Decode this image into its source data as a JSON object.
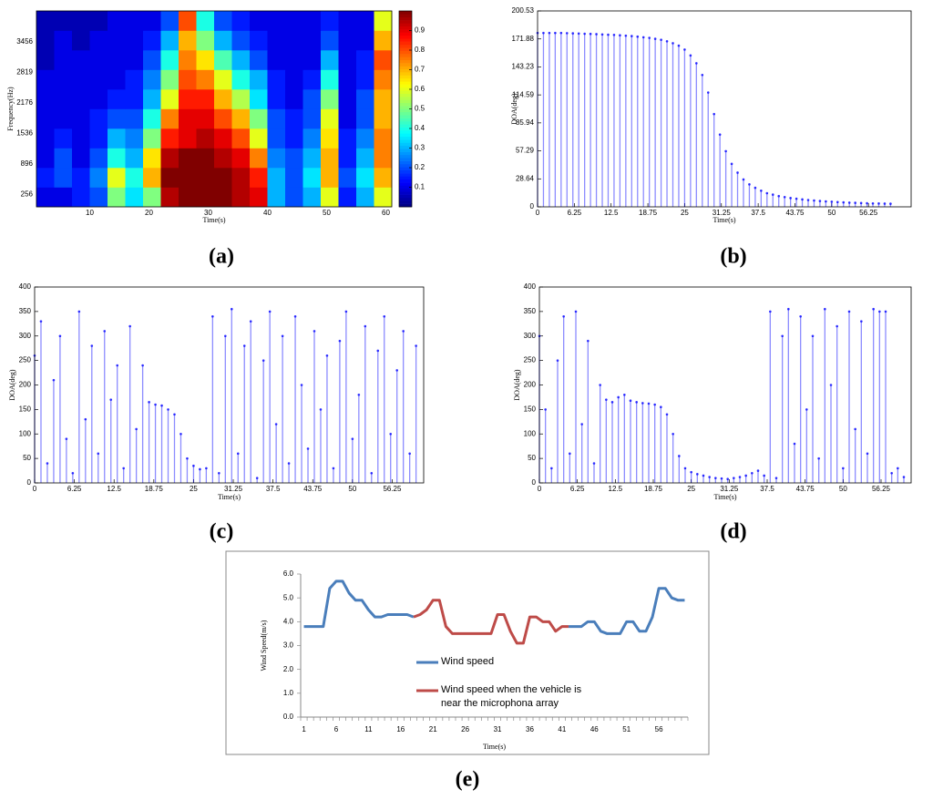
{
  "chart_data": [
    {
      "type": "heatmap",
      "panel_label": "(a)",
      "xlabel": "Time(s)",
      "ylabel": "Frequency(Hz)",
      "x_bins": [
        1,
        4,
        7,
        10,
        13,
        16,
        19,
        22,
        25,
        28,
        31,
        34,
        37,
        40,
        43,
        46,
        49,
        52,
        55,
        58,
        61
      ],
      "y_bins": [
        0,
        410,
        820,
        1230,
        1640,
        2050,
        2460,
        2870,
        3280,
        3690,
        4100
      ],
      "z": [
        [
          0.1,
          0.1,
          0.15,
          0.2,
          0.5,
          0.35,
          0.5,
          0.95,
          1,
          1,
          1,
          0.95,
          0.9,
          0.3,
          0.2,
          0.3,
          0.6,
          0.15,
          0.3,
          0.6
        ],
        [
          0.15,
          0.2,
          0.15,
          0.25,
          0.6,
          0.4,
          0.7,
          1,
          1,
          1,
          1,
          0.95,
          0.85,
          0.3,
          0.2,
          0.35,
          0.7,
          0.2,
          0.35,
          0.7
        ],
        [
          0.1,
          0.2,
          0.1,
          0.2,
          0.4,
          0.3,
          0.65,
          0.95,
          1,
          1,
          0.95,
          0.9,
          0.75,
          0.25,
          0.2,
          0.3,
          0.7,
          0.15,
          0.3,
          0.75
        ],
        [
          0.1,
          0.15,
          0.1,
          0.15,
          0.3,
          0.25,
          0.5,
          0.85,
          0.9,
          0.95,
          0.9,
          0.8,
          0.6,
          0.2,
          0.15,
          0.25,
          0.65,
          0.15,
          0.25,
          0.75
        ],
        [
          0.1,
          0.1,
          0.1,
          0.15,
          0.2,
          0.2,
          0.4,
          0.75,
          0.9,
          0.9,
          0.8,
          0.7,
          0.5,
          0.2,
          0.15,
          0.2,
          0.6,
          0.1,
          0.2,
          0.7
        ],
        [
          0.1,
          0.1,
          0.1,
          0.1,
          0.15,
          0.15,
          0.3,
          0.6,
          0.85,
          0.85,
          0.7,
          0.55,
          0.35,
          0.15,
          0.1,
          0.2,
          0.5,
          0.1,
          0.2,
          0.7
        ],
        [
          0.1,
          0.1,
          0.1,
          0.1,
          0.1,
          0.15,
          0.25,
          0.5,
          0.8,
          0.75,
          0.6,
          0.4,
          0.3,
          0.15,
          0.1,
          0.15,
          0.4,
          0.1,
          0.15,
          0.75
        ],
        [
          0.05,
          0.1,
          0.1,
          0.1,
          0.1,
          0.1,
          0.2,
          0.4,
          0.75,
          0.65,
          0.45,
          0.3,
          0.2,
          0.1,
          0.1,
          0.1,
          0.3,
          0.1,
          0.15,
          0.8
        ],
        [
          0.05,
          0.1,
          0.05,
          0.1,
          0.1,
          0.1,
          0.15,
          0.3,
          0.7,
          0.5,
          0.3,
          0.2,
          0.15,
          0.1,
          0.1,
          0.1,
          0.2,
          0.1,
          0.1,
          0.7
        ],
        [
          0.05,
          0.05,
          0.05,
          0.05,
          0.1,
          0.1,
          0.1,
          0.2,
          0.8,
          0.4,
          0.2,
          0.15,
          0.1,
          0.1,
          0.1,
          0.1,
          0.15,
          0.1,
          0.1,
          0.6
        ]
      ],
      "xlim": [
        1,
        61
      ],
      "ylim": [
        0,
        4100
      ],
      "xticks": [
        10,
        20,
        30,
        40,
        50,
        60
      ],
      "yticks": [
        256,
        896,
        1536,
        2176,
        2819,
        3456
      ],
      "colormap": "jet",
      "clim": [
        0,
        1
      ],
      "cticks": [
        0.1,
        0.2,
        0.3,
        0.4,
        0.5,
        0.6,
        0.7,
        0.8,
        0.9
      ]
    },
    {
      "type": "stem",
      "panel_label": "(b)",
      "xlabel": "Time(s)",
      "ylabel": "DOA(deg)",
      "color": "#0000ff",
      "x": [
        0,
        1,
        2,
        3,
        4,
        5,
        6,
        7,
        8,
        9,
        10,
        11,
        12,
        13,
        14,
        15,
        16,
        17,
        18,
        19,
        20,
        21,
        22,
        23,
        24,
        25,
        26,
        27,
        28,
        29,
        30,
        31,
        32,
        33,
        34,
        35,
        36,
        37,
        38,
        39,
        40,
        41,
        42,
        43,
        44,
        45,
        46,
        47,
        48,
        49,
        50,
        51,
        52,
        53,
        54,
        55,
        56,
        57,
        58,
        59,
        60
      ],
      "values": [
        178,
        178,
        178,
        178,
        178,
        177.8,
        177.6,
        177.4,
        177.2,
        177,
        176.8,
        176.5,
        176.2,
        176,
        175.6,
        175.2,
        174.8,
        174.2,
        173.6,
        173,
        172,
        171,
        169.5,
        167.5,
        165,
        161,
        155,
        147,
        135,
        117,
        95,
        74,
        57,
        44,
        35,
        28,
        23,
        19.5,
        16.5,
        14,
        12.5,
        11,
        10,
        9,
        8.3,
        7.6,
        7,
        6.5,
        6,
        5.6,
        5.2,
        4.9,
        4.6,
        4.3,
        4.1,
        3.9,
        3.7,
        3.5,
        3.4,
        3.3,
        3.2
      ],
      "xlim": [
        0,
        63.5
      ],
      "ylim": [
        0,
        200.53
      ],
      "xticks": [
        0,
        6.25,
        12.5,
        18.75,
        25,
        31.25,
        37.5,
        43.75,
        50,
        56.25
      ],
      "yticks": [
        0,
        28.64,
        57.29,
        85.94,
        114.59,
        143.23,
        171.88,
        200.53
      ]
    },
    {
      "type": "stem",
      "panel_label": "(c)",
      "xlabel": "Time(s)",
      "ylabel": "DOA(deg)",
      "color": "#0000ff",
      "x": [
        0,
        1,
        2,
        3,
        4,
        5,
        6,
        7,
        8,
        9,
        10,
        11,
        12,
        13,
        14,
        15,
        16,
        17,
        18,
        19,
        20,
        21,
        22,
        23,
        24,
        25,
        26,
        27,
        28,
        29,
        30,
        31,
        32,
        33,
        34,
        35,
        36,
        37,
        38,
        39,
        40,
        41,
        42,
        43,
        44,
        45,
        46,
        47,
        48,
        49,
        50,
        51,
        52,
        53,
        54,
        55,
        56,
        57,
        58,
        59,
        60
      ],
      "values": [
        260,
        330,
        40,
        210,
        300,
        90,
        20,
        350,
        130,
        280,
        60,
        310,
        170,
        240,
        30,
        320,
        110,
        240,
        165,
        160,
        158,
        150,
        140,
        100,
        50,
        35,
        28,
        30,
        340,
        20,
        300,
        355,
        60,
        280,
        330,
        10,
        250,
        350,
        120,
        300,
        40,
        340,
        200,
        70,
        310,
        150,
        260,
        30,
        290,
        350,
        90,
        180,
        320,
        20,
        270,
        340,
        100,
        230,
        310,
        60,
        280
      ],
      "xlim": [
        0,
        61.2
      ],
      "ylim": [
        0,
        400
      ],
      "xticks": [
        0,
        6.25,
        12.5,
        18.75,
        25,
        31.25,
        37.5,
        43.75,
        50,
        56.25
      ],
      "yticks": [
        0,
        50,
        100,
        150,
        200,
        250,
        300,
        350,
        400
      ]
    },
    {
      "type": "stem",
      "panel_label": "(d)",
      "xlabel": "Time(s)",
      "ylabel": "DOA(deg)",
      "color": "#0000ff",
      "x": [
        0,
        1,
        2,
        3,
        4,
        5,
        6,
        7,
        8,
        9,
        10,
        11,
        12,
        13,
        14,
        15,
        16,
        17,
        18,
        19,
        20,
        21,
        22,
        23,
        24,
        25,
        26,
        27,
        28,
        29,
        30,
        31,
        32,
        33,
        34,
        35,
        36,
        37,
        38,
        39,
        40,
        41,
        42,
        43,
        44,
        45,
        46,
        47,
        48,
        49,
        50,
        51,
        52,
        53,
        54,
        55,
        56,
        57,
        58,
        59,
        60
      ],
      "values": [
        300,
        150,
        30,
        250,
        340,
        60,
        350,
        120,
        290,
        40,
        200,
        170,
        165,
        175,
        180,
        168,
        165,
        163,
        162,
        160,
        155,
        140,
        100,
        55,
        30,
        22,
        18,
        15,
        12,
        10,
        9,
        8,
        10,
        12,
        15,
        20,
        25,
        15,
        350,
        10,
        300,
        355,
        80,
        340,
        150,
        300,
        50,
        355,
        200,
        320,
        30,
        350,
        110,
        330,
        60,
        355,
        350,
        350,
        20,
        30,
        12
      ],
      "xlim": [
        0,
        61.2
      ],
      "ylim": [
        0,
        400
      ],
      "xticks": [
        0,
        6.25,
        12.5,
        18.75,
        25,
        31.25,
        37.5,
        43.75,
        50,
        56.25
      ],
      "yticks": [
        0,
        50,
        100,
        150,
        200,
        250,
        300,
        350,
        400
      ]
    },
    {
      "type": "line",
      "panel_label": "(e)",
      "xlabel": "Time(s)",
      "ylabel": "Wind Speed(m/s)",
      "categories": [
        1,
        null,
        null,
        null,
        null,
        6,
        null,
        null,
        null,
        null,
        11,
        null,
        null,
        null,
        null,
        16,
        null,
        null,
        null,
        null,
        21,
        null,
        null,
        null,
        null,
        26,
        null,
        null,
        null,
        null,
        31,
        null,
        null,
        null,
        null,
        36,
        null,
        null,
        null,
        null,
        41,
        null,
        null,
        null,
        null,
        46,
        null,
        null,
        null,
        null,
        51,
        null,
        null,
        null,
        null,
        56,
        null,
        null,
        null,
        null
      ],
      "series": [
        {
          "name": "Wind speed",
          "color": "#4a7ebb",
          "values": [
            3.8,
            3.8,
            3.8,
            3.8,
            5.4,
            5.7,
            5.7,
            5.2,
            4.9,
            4.9,
            4.5,
            4.2,
            4.2,
            4.3,
            4.3,
            4.3,
            4.3,
            4.2,
            null,
            null,
            null,
            null,
            null,
            null,
            null,
            null,
            null,
            null,
            null,
            null,
            null,
            null,
            null,
            null,
            null,
            null,
            null,
            null,
            null,
            null,
            null,
            3.8,
            3.8,
            3.8,
            4.0,
            4.0,
            3.6,
            3.5,
            3.5,
            3.5,
            4.0,
            4.0,
            3.6,
            3.6,
            4.2,
            5.4,
            5.4,
            5.0,
            4.9,
            4.9
          ]
        },
        {
          "name": "Wind speed when the vehicle is near the microphona array",
          "color": "#be4b48",
          "values": [
            null,
            null,
            null,
            null,
            null,
            null,
            null,
            null,
            null,
            null,
            null,
            null,
            null,
            null,
            null,
            null,
            null,
            4.2,
            4.3,
            4.5,
            4.9,
            4.9,
            3.8,
            3.5,
            3.5,
            3.5,
            3.5,
            3.5,
            3.5,
            3.5,
            4.3,
            4.3,
            3.6,
            3.1,
            3.1,
            4.2,
            4.2,
            4.0,
            4.0,
            3.6,
            3.8,
            3.8,
            null,
            null,
            null,
            null,
            null,
            null,
            null,
            null,
            null,
            null,
            null,
            null,
            null,
            null,
            null,
            null,
            null,
            null
          ]
        }
      ],
      "ylim": [
        0,
        6
      ],
      "yticks": [
        {
          "value": 0,
          "label": "0.0"
        },
        {
          "value": 1,
          "label": "1.0"
        },
        {
          "value": 2,
          "label": "2.0"
        },
        {
          "value": 3,
          "label": "3.0"
        },
        {
          "value": 4,
          "label": "4.0"
        },
        {
          "value": 5,
          "label": "5.0"
        },
        {
          "value": 6,
          "label": "6.0"
        }
      ]
    }
  ]
}
